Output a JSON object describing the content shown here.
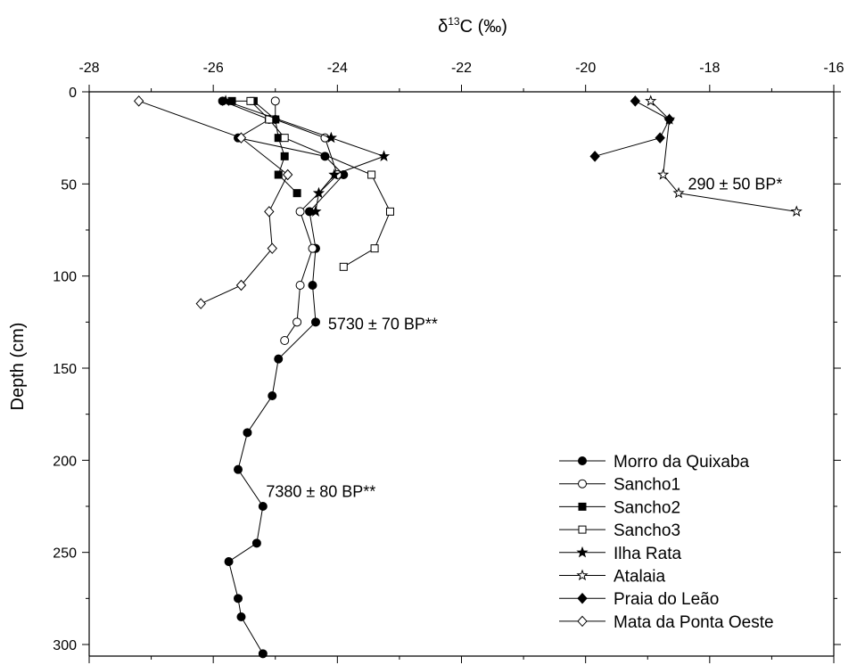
{
  "chart_data": {
    "type": "scatter",
    "title": "",
    "xlabel": {
      "prefix": "δ",
      "superscript": "13",
      "suffix": "C (‰)"
    },
    "ylabel": "Depth (cm)",
    "xlim": [
      -28,
      -16
    ],
    "ylim": [
      0,
      310
    ],
    "y_inverted": true,
    "x_axis_position": "top",
    "xticks": [
      -28,
      -26,
      -24,
      -22,
      -20,
      -18,
      -16
    ],
    "yticks": [
      0,
      50,
      100,
      150,
      200,
      250,
      300
    ],
    "grid": false,
    "legend_position": "bottom-right",
    "series": [
      {
        "name": "Morro da Quixaba",
        "marker": "circle",
        "filled": true,
        "x": [
          -25.85,
          -25.1,
          -25.6,
          -24.2,
          -23.9,
          -24.45,
          -24.35,
          -24.4,
          -24.35,
          -24.95,
          -25.05,
          -25.45,
          -25.6,
          -25.2,
          -25.3,
          -25.75,
          -25.6,
          -25.55,
          -25.2
        ],
        "y": [
          5,
          15,
          25,
          35,
          45,
          65,
          85,
          105,
          125,
          145,
          165,
          185,
          205,
          225,
          245,
          255,
          275,
          285,
          305
        ]
      },
      {
        "name": "Sancho1",
        "marker": "circle",
        "filled": false,
        "x": [
          -25.0,
          -25.0,
          -24.2,
          -24.0,
          -24.6,
          -24.4,
          -24.6,
          -24.65,
          -24.85
        ],
        "y": [
          5,
          15,
          25,
          45,
          65,
          85,
          105,
          125,
          135
        ]
      },
      {
        "name": "Sancho2",
        "marker": "square",
        "filled": true,
        "x": [
          -25.7,
          -25.35,
          -25.0,
          -24.95,
          -24.85,
          -24.95,
          -24.65
        ],
        "y": [
          5,
          5,
          15,
          25,
          35,
          45,
          55
        ]
      },
      {
        "name": "Sancho3",
        "marker": "square",
        "filled": false,
        "x": [
          -25.4,
          -25.1,
          -24.85,
          -23.45,
          -23.15,
          -23.4,
          -23.9
        ],
        "y": [
          5,
          15,
          25,
          45,
          65,
          85,
          95
        ]
      },
      {
        "name": "Ilha Rata",
        "marker": "star",
        "filled": true,
        "x": [
          -25.8,
          -24.1,
          -23.25,
          -24.05,
          -24.3,
          -24.35
        ],
        "y": [
          5,
          25,
          35,
          45,
          55,
          65
        ]
      },
      {
        "name": "Atalaia",
        "marker": "star",
        "filled": false,
        "x": [
          -18.95,
          -18.65,
          -18.75,
          -18.5,
          -16.6
        ],
        "y": [
          5,
          15,
          45,
          55,
          65
        ]
      },
      {
        "name": "Praia do Leão",
        "marker": "diamond",
        "filled": true,
        "x": [
          -19.2,
          -18.65,
          -18.8,
          -19.85
        ],
        "y": [
          5,
          15,
          25,
          35
        ]
      },
      {
        "name": "Mata da Ponta Oeste",
        "marker": "diamond",
        "filled": false,
        "x": [
          -27.2,
          -25.55,
          -24.8,
          -25.1,
          -25.05,
          -25.55,
          -26.2
        ],
        "y": [
          5,
          25,
          45,
          65,
          85,
          105,
          115
        ]
      }
    ],
    "annotations": [
      {
        "text": "290 ± 50 BP*",
        "x": -18.35,
        "y": 50
      },
      {
        "text": "5730 ± 70 BP**",
        "x": -24.15,
        "y": 126
      },
      {
        "text": "7380 ± 80 BP**",
        "x": -25.15,
        "y": 217
      }
    ]
  }
}
